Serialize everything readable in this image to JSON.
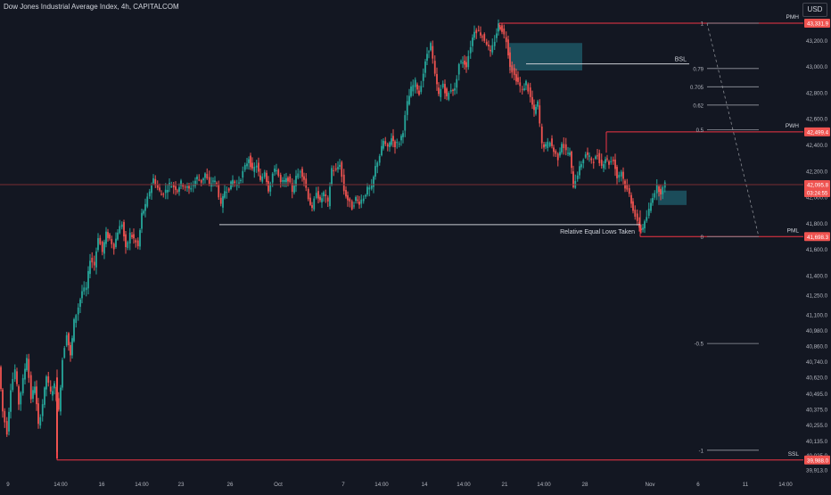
{
  "header": {
    "title": "Dow Jones Industrial Average Index, 4h, CAPITALCOM",
    "currency": "USD"
  },
  "colors": {
    "background": "#131722",
    "bull": "#26a69a",
    "bear": "#ef5350",
    "level_line": "#f23645",
    "white_line": "#c9ccd3",
    "zone": "#1f5f6e"
  },
  "chart_data": {
    "type": "candlestick",
    "title": "Dow Jones Industrial Average Index, 4h, CAPITALCOM",
    "ylim": [
      39850,
      43400
    ],
    "grid": false,
    "x_ticks": [
      "9",
      "14:00",
      "16",
      "14:00",
      "23",
      "26",
      "Oct",
      "7",
      "14:00",
      "14",
      "14:00",
      "21",
      "14:00",
      "28",
      "Nov",
      "6",
      "11",
      "14:00"
    ],
    "y_ticks": [
      "43,200.0",
      "43,000.0",
      "42,800.0",
      "42,600.0",
      "42,400.0",
      "42,200.0",
      "42,000.0",
      "41,800.0",
      "41,600.0",
      "41,400.0",
      "41,250.0",
      "41,100.0",
      "40,980.0",
      "40,860.0",
      "40,740.0",
      "40,620.0",
      "40,495.0",
      "40,375.0",
      "40,255.0",
      "40,135.0",
      "40,025.0",
      "39,913.0"
    ],
    "price_labels": [
      {
        "label": "PMH",
        "value": "43,331.9"
      },
      {
        "label": "PWH",
        "value": "42,499.4"
      },
      {
        "label": "",
        "value": "42,095.8",
        "countdown": "03:24:55"
      },
      {
        "label": "PML",
        "value": "41,698.3"
      },
      {
        "label": "SSL",
        "value": "39,988.0"
      }
    ],
    "fib_levels": [
      {
        "ratio": "1",
        "price": 43331.9
      },
      {
        "ratio": "0.79",
        "price": 42985
      },
      {
        "ratio": "0.705",
        "price": 42845
      },
      {
        "ratio": "0.62",
        "price": 42705
      },
      {
        "ratio": "0.5",
        "price": 42515
      },
      {
        "ratio": "0",
        "price": 41698.3
      },
      {
        "ratio": "-0.5",
        "price": 40880
      },
      {
        "ratio": "-1",
        "price": 40063
      }
    ],
    "annotations": [
      {
        "text": "BSL",
        "price": 43020
      },
      {
        "text": "Relative Equal Lows Taken",
        "price": 41790
      }
    ],
    "price_path": [
      [
        0,
        40700
      ],
      [
        4,
        40360
      ],
      [
        9,
        40200
      ],
      [
        13,
        40540
      ],
      [
        18,
        40680
      ],
      [
        22,
        40420
      ],
      [
        27,
        40600
      ],
      [
        31,
        40780
      ],
      [
        36,
        40460
      ],
      [
        40,
        40560
      ],
      [
        44,
        40250
      ],
      [
        49,
        40420
      ],
      [
        53,
        40630
      ],
      [
        58,
        40500
      ],
      [
        62,
        40560
      ],
      [
        67,
        40360
      ],
      [
        71,
        40760
      ],
      [
        76,
        40960
      ],
      [
        80,
        40780
      ],
      [
        84,
        41050
      ],
      [
        89,
        41160
      ],
      [
        93,
        41280
      ],
      [
        98,
        41300
      ],
      [
        102,
        41530
      ],
      [
        107,
        41480
      ],
      [
        111,
        41700
      ],
      [
        116,
        41580
      ],
      [
        120,
        41720
      ],
      [
        124,
        41680
      ],
      [
        129,
        41620
      ],
      [
        133,
        41740
      ],
      [
        138,
        41800
      ],
      [
        142,
        41600
      ],
      [
        147,
        41720
      ],
      [
        151,
        41680
      ],
      [
        156,
        41620
      ],
      [
        160,
        41870
      ],
      [
        164,
        41930
      ],
      [
        169,
        42050
      ],
      [
        173,
        42140
      ],
      [
        178,
        42070
      ],
      [
        182,
        42020
      ],
      [
        187,
        42050
      ],
      [
        191,
        42100
      ],
      [
        196,
        42080
      ],
      [
        200,
        42060
      ],
      [
        204,
        42110
      ],
      [
        209,
        42080
      ],
      [
        213,
        42060
      ],
      [
        218,
        42100
      ],
      [
        222,
        42150
      ],
      [
        227,
        42120
      ],
      [
        231,
        42180
      ],
      [
        236,
        42090
      ],
      [
        240,
        42130
      ],
      [
        244,
        42100
      ],
      [
        249,
        41930
      ],
      [
        253,
        42050
      ],
      [
        258,
        42070
      ],
      [
        262,
        42130
      ],
      [
        267,
        42090
      ],
      [
        271,
        42150
      ],
      [
        276,
        42230
      ],
      [
        280,
        42300
      ],
      [
        284,
        42200
      ],
      [
        289,
        42250
      ],
      [
        293,
        42120
      ],
      [
        298,
        42200
      ],
      [
        302,
        42060
      ],
      [
        307,
        42180
      ],
      [
        311,
        42220
      ],
      [
        316,
        42110
      ],
      [
        320,
        42120
      ],
      [
        324,
        42140
      ],
      [
        329,
        42050
      ],
      [
        333,
        42150
      ],
      [
        338,
        42210
      ],
      [
        342,
        42140
      ],
      [
        347,
        42000
      ],
      [
        351,
        41900
      ],
      [
        356,
        42050
      ],
      [
        360,
        41960
      ],
      [
        364,
        42030
      ],
      [
        369,
        41950
      ],
      [
        373,
        42220
      ],
      [
        378,
        42200
      ],
      [
        382,
        42260
      ],
      [
        387,
        42050
      ],
      [
        391,
        41980
      ],
      [
        396,
        41920
      ],
      [
        400,
        41990
      ],
      [
        404,
        41960
      ],
      [
        409,
        42000
      ],
      [
        413,
        42060
      ],
      [
        418,
        42070
      ],
      [
        422,
        42230
      ],
      [
        427,
        42320
      ],
      [
        431,
        42430
      ],
      [
        436,
        42370
      ],
      [
        440,
        42460
      ],
      [
        444,
        42400
      ],
      [
        449,
        42420
      ],
      [
        453,
        42510
      ],
      [
        458,
        42720
      ],
      [
        462,
        42830
      ],
      [
        467,
        42880
      ],
      [
        471,
        42790
      ],
      [
        476,
        42950
      ],
      [
        480,
        43100
      ],
      [
        484,
        43170
      ],
      [
        489,
        42930
      ],
      [
        493,
        42780
      ],
      [
        498,
        42870
      ],
      [
        502,
        42760
      ],
      [
        507,
        42830
      ],
      [
        511,
        42820
      ],
      [
        516,
        43020
      ],
      [
        520,
        43040
      ],
      [
        524,
        43010
      ],
      [
        529,
        43160
      ],
      [
        533,
        43280
      ],
      [
        538,
        43270
      ],
      [
        542,
        43230
      ],
      [
        547,
        43180
      ],
      [
        551,
        43100
      ],
      [
        556,
        43200
      ],
      [
        560,
        43320
      ],
      [
        564,
        43280
      ],
      [
        569,
        43200
      ],
      [
        573,
        43010
      ],
      [
        578,
        42930
      ],
      [
        582,
        42880
      ],
      [
        587,
        42810
      ],
      [
        591,
        42880
      ],
      [
        596,
        42760
      ],
      [
        600,
        42650
      ],
      [
        604,
        42720
      ],
      [
        609,
        42400
      ],
      [
        613,
        42390
      ],
      [
        618,
        42430
      ],
      [
        622,
        42350
      ],
      [
        627,
        42300
      ],
      [
        631,
        42420
      ],
      [
        636,
        42350
      ],
      [
        640,
        42330
      ],
      [
        644,
        42090
      ],
      [
        649,
        42180
      ],
      [
        653,
        42260
      ],
      [
        658,
        42330
      ],
      [
        662,
        42300
      ],
      [
        667,
        42280
      ],
      [
        671,
        42320
      ],
      [
        676,
        42240
      ],
      [
        680,
        42300
      ],
      [
        684,
        42260
      ],
      [
        689,
        42290
      ],
      [
        693,
        42150
      ],
      [
        698,
        42200
      ],
      [
        702,
        42080
      ],
      [
        707,
        42020
      ],
      [
        711,
        41910
      ],
      [
        716,
        41800
      ],
      [
        720,
        41750
      ],
      [
        724,
        41800
      ],
      [
        729,
        41900
      ],
      [
        733,
        42010
      ],
      [
        738,
        42080
      ],
      [
        742,
        42040
      ],
      [
        747,
        42096
      ]
    ]
  }
}
